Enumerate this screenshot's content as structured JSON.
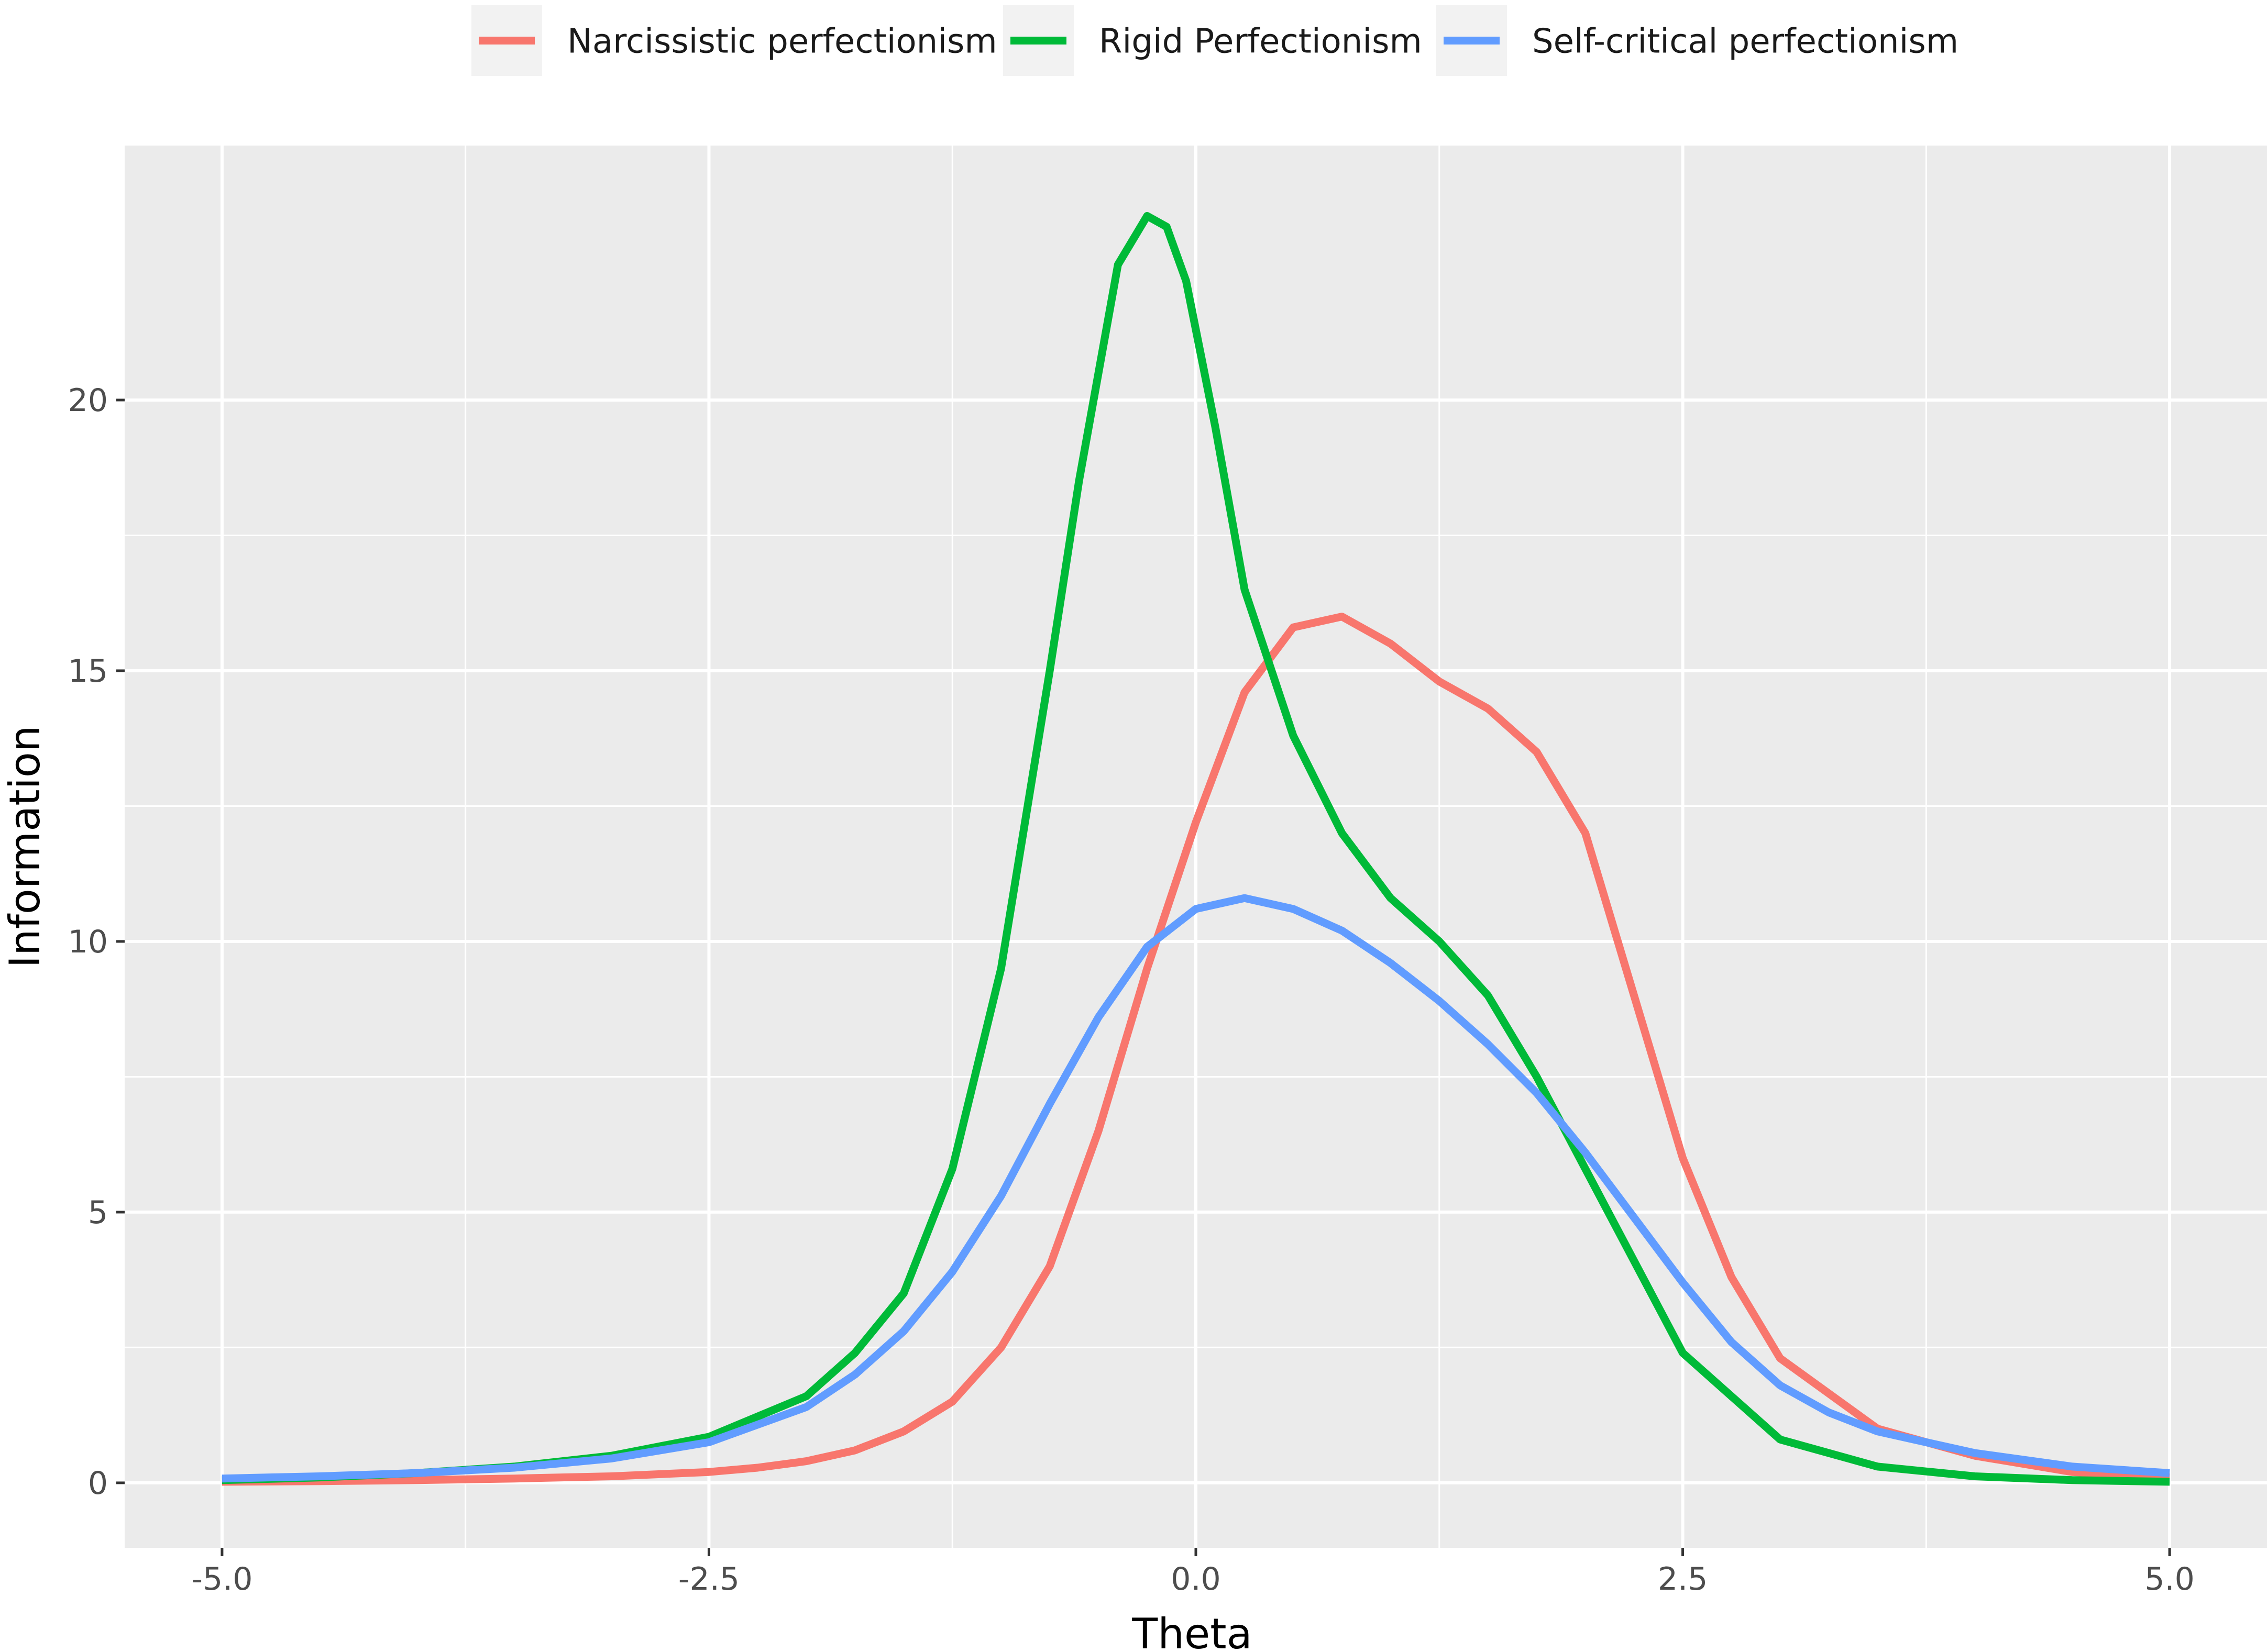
{
  "chart_data": {
    "type": "line",
    "xlabel": "Theta",
    "ylabel": "Information",
    "xlim": [
      -5.5,
      5.5
    ],
    "ylim": [
      -1.2,
      24.7
    ],
    "x_ticks": [
      -5.0,
      -2.5,
      0.0,
      2.5,
      5.0
    ],
    "x_tick_labels": [
      "-5.0",
      "-2.5",
      "0.0",
      "2.5",
      "5.0"
    ],
    "y_ticks": [
      0,
      5,
      10,
      15,
      20
    ],
    "y_tick_labels": [
      "0",
      "5",
      "10",
      "15",
      "20"
    ],
    "grid": true,
    "legend_position": "top",
    "series": [
      {
        "name": "Narcissistic perfectionism",
        "color": "#F8766D",
        "x": [
          -5.0,
          -4.5,
          -4.0,
          -3.5,
          -3.0,
          -2.5,
          -2.25,
          -2.0,
          -1.75,
          -1.5,
          -1.25,
          -1.0,
          -0.75,
          -0.5,
          -0.25,
          0.0,
          0.25,
          0.5,
          0.75,
          1.0,
          1.25,
          1.5,
          1.75,
          2.0,
          2.25,
          2.5,
          2.75,
          3.0,
          3.5,
          4.0,
          4.5,
          5.0
        ],
        "y": [
          0.02,
          0.03,
          0.05,
          0.08,
          0.12,
          0.2,
          0.28,
          0.4,
          0.6,
          0.95,
          1.5,
          2.5,
          4.0,
          6.5,
          9.5,
          12.2,
          14.6,
          15.8,
          16.0,
          15.5,
          14.8,
          14.3,
          13.5,
          12.0,
          9.0,
          6.0,
          3.8,
          2.3,
          1.0,
          0.5,
          0.2,
          0.1
        ]
      },
      {
        "name": "Rigid Perfectionism",
        "color": "#00BA38",
        "x": [
          -5.0,
          -4.5,
          -4.0,
          -3.5,
          -3.0,
          -2.5,
          -2.0,
          -1.75,
          -1.5,
          -1.25,
          -1.0,
          -0.75,
          -0.6,
          -0.4,
          -0.25,
          -0.15,
          -0.05,
          0.1,
          0.25,
          0.5,
          0.75,
          1.0,
          1.25,
          1.5,
          1.75,
          2.0,
          2.5,
          3.0,
          3.5,
          4.0,
          4.5,
          5.0
        ],
        "y": [
          0.05,
          0.1,
          0.18,
          0.3,
          0.5,
          0.85,
          1.6,
          2.4,
          3.5,
          5.8,
          9.5,
          15.0,
          18.5,
          22.5,
          23.4,
          23.2,
          22.2,
          19.5,
          16.5,
          13.8,
          12.0,
          10.8,
          10.0,
          9.0,
          7.5,
          5.8,
          2.4,
          0.8,
          0.3,
          0.12,
          0.05,
          0.02
        ]
      },
      {
        "name": "Self-critical perfectionism",
        "color": "#619CFF",
        "x": [
          -5.0,
          -4.5,
          -4.0,
          -3.5,
          -3.0,
          -2.5,
          -2.0,
          -1.75,
          -1.5,
          -1.25,
          -1.0,
          -0.75,
          -0.5,
          -0.25,
          0.0,
          0.25,
          0.5,
          0.75,
          1.0,
          1.25,
          1.5,
          1.75,
          2.0,
          2.25,
          2.5,
          2.75,
          3.0,
          3.25,
          3.5,
          4.0,
          4.5,
          5.0
        ],
        "y": [
          0.08,
          0.12,
          0.18,
          0.28,
          0.45,
          0.75,
          1.4,
          2.0,
          2.8,
          3.9,
          5.3,
          7.0,
          8.6,
          9.9,
          10.6,
          10.8,
          10.6,
          10.2,
          9.6,
          8.9,
          8.1,
          7.2,
          6.1,
          4.9,
          3.7,
          2.6,
          1.8,
          1.3,
          0.95,
          0.55,
          0.3,
          0.18
        ]
      }
    ]
  }
}
